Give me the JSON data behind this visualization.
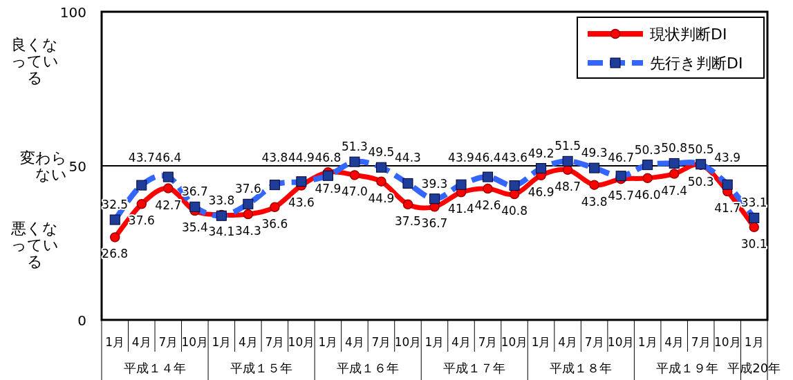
{
  "chart_data": {
    "type": "line",
    "categories": [
      "1月",
      "4月",
      "7月",
      "10月",
      "1月",
      "4月",
      "7月",
      "10月",
      "1月",
      "4月",
      "7月",
      "10月",
      "1月",
      "4月",
      "7月",
      "10月",
      "1月",
      "4月",
      "7月",
      "10月",
      "1月",
      "4月",
      "7月",
      "10月",
      "1月"
    ],
    "series": [
      {
        "name": "現状判断DI",
        "color": "#ff0000",
        "marker": "circle",
        "line_style": "solid",
        "value_labels": [
          "26.8",
          "37.6",
          "42.7",
          "35.4",
          "34.1",
          "34.3",
          "36.6",
          "43.6",
          "47.9",
          "47.0",
          "44.9",
          "37.5",
          "36.7",
          "41.4",
          "42.6",
          "40.8",
          "46.9",
          "48.7",
          "43.8",
          "45.7",
          "46.0",
          "47.4",
          "50.3",
          "41.7",
          "30.1"
        ],
        "values": [
          26.8,
          37.6,
          42.7,
          35.4,
          34.1,
          34.3,
          36.6,
          43.6,
          47.9,
          47.0,
          44.9,
          37.5,
          36.7,
          41.4,
          42.6,
          40.8,
          46.9,
          48.7,
          43.8,
          45.7,
          46.0,
          47.4,
          50.3,
          41.7,
          30.1
        ]
      },
      {
        "name": "先行き判断DI",
        "color": "#3366ff",
        "marker": "square",
        "line_style": "dashed",
        "value_labels": [
          "32.5",
          "43.7",
          "46.4",
          "36.7",
          "33.8",
          "37.6",
          "43.8",
          "44.9",
          "46.8",
          "51.3",
          "49.5",
          "44.3",
          "39.3",
          "43.9",
          "46.4",
          "43.6",
          "49.2",
          "51.5",
          "49.3",
          "46.7",
          "50.3",
          "50.8",
          "50.5",
          "43.9",
          "33.1"
        ],
        "values": [
          32.5,
          43.7,
          46.4,
          36.7,
          33.8,
          37.6,
          43.8,
          44.9,
          46.8,
          51.3,
          49.5,
          44.3,
          39.3,
          43.9,
          46.4,
          43.6,
          49.2,
          51.5,
          49.3,
          46.7,
          50.3,
          50.8,
          50.5,
          43.9,
          33.1
        ]
      }
    ],
    "ylim": [
      0,
      100
    ],
    "yticks": [
      0,
      50,
      100
    ],
    "ref_lines": [
      {
        "axis": "y",
        "value": 50,
        "label": "変わらない",
        "color": "#000000"
      }
    ],
    "annotations": [
      "良くなっている",
      "悪くなっている",
      "平成１４年",
      "平成１５年",
      "平成１６年",
      "平成１７年",
      "平成１８年",
      "平成１９年",
      "平成20年"
    ],
    "legend": "top right",
    "grid": false
  }
}
